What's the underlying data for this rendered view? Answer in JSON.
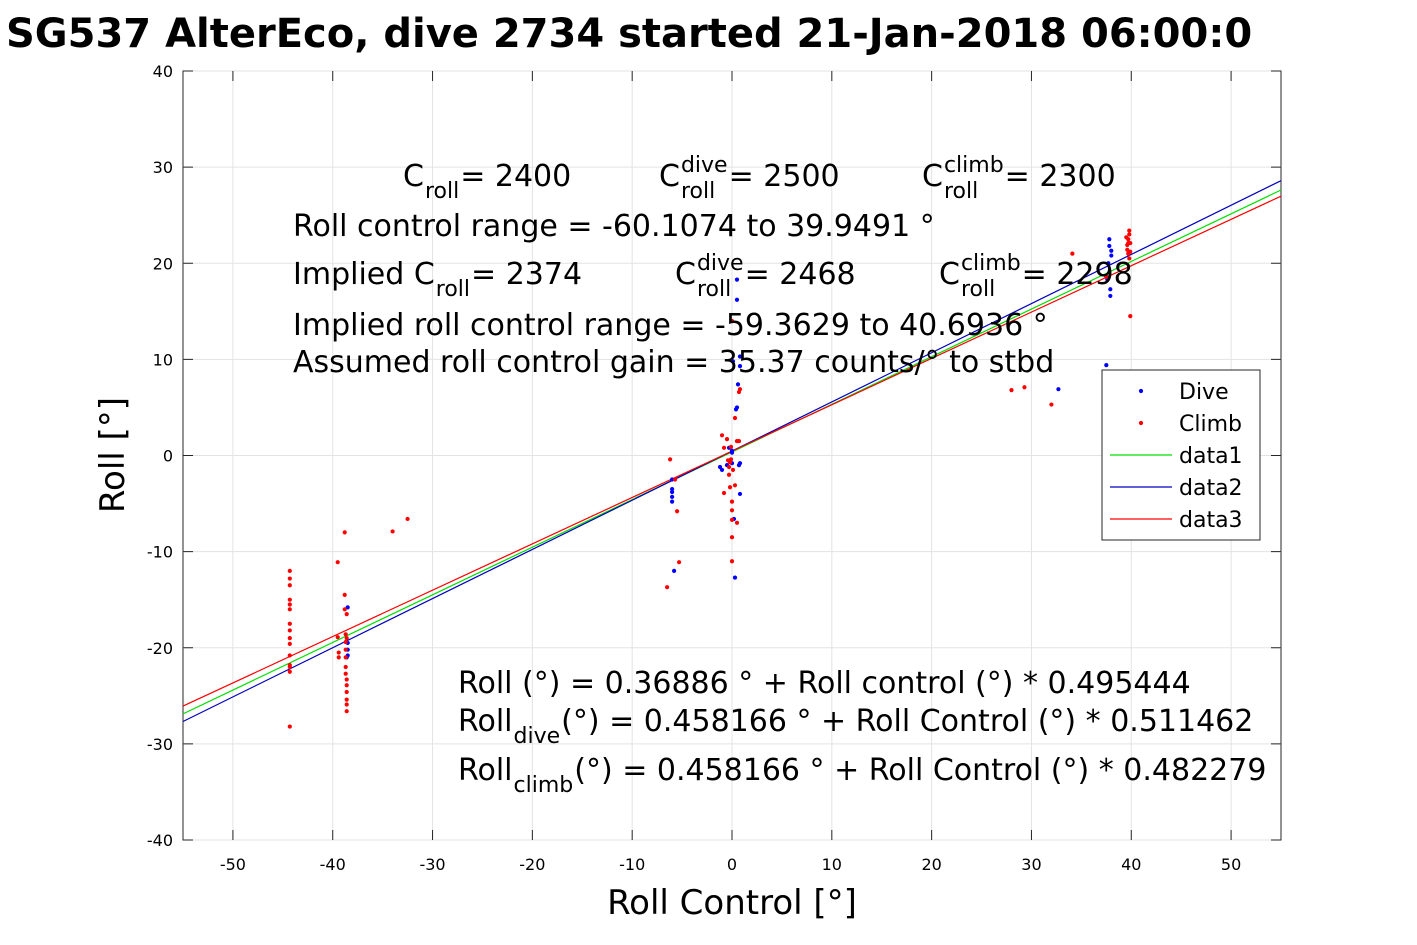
{
  "chart_data": {
    "type": "scatter",
    "title": "SG537 AlterEco, dive 2734 started 21-Jan-2018 06:00:0",
    "xlabel": "Roll Control [°]",
    "ylabel": "Roll [°]",
    "xlim": [
      -55,
      55
    ],
    "ylim": [
      -40,
      40
    ],
    "x_ticks": [
      -50,
      -40,
      -30,
      -20,
      -10,
      0,
      10,
      20,
      30,
      40,
      50
    ],
    "y_ticks": [
      -40,
      -30,
      -20,
      -10,
      0,
      10,
      20,
      30,
      40
    ],
    "grid": true,
    "legend_position": "right",
    "series": [
      {
        "name": "Dive",
        "kind": "points",
        "color": "#0000ff",
        "x": [
          -38.5,
          -38.5,
          -38.5,
          -38.5,
          -38.6,
          -6,
          -6,
          -6,
          -6,
          -6,
          -5.8,
          -1.2,
          -1,
          -0.5,
          -0.3,
          -0.2,
          0,
          0,
          0,
          0.1,
          0.2,
          0.3,
          0.4,
          0.5,
          0.5,
          0.5,
          0.6,
          0.7,
          0.8,
          0.8,
          0.8,
          0.8,
          32.7,
          37.5,
          37.6,
          37.7,
          37.8,
          37.8,
          37.9,
          37.9,
          38,
          38
        ],
        "y": [
          -15.8,
          -19.5,
          -20.2,
          -20.8,
          -21,
          -3.5,
          -3.8,
          -4.3,
          -4.8,
          -2.5,
          -12,
          -1.2,
          -1.5,
          -1,
          0.8,
          -0.5,
          -0.8,
          0.3,
          0.5,
          9.8,
          -6.6,
          -12.7,
          4.8,
          5,
          16.2,
          18.3,
          7.4,
          -1,
          -4,
          -0.8,
          9.3,
          10.3,
          6.9,
          9.4,
          18.3,
          20,
          21.8,
          22.5,
          17.3,
          16.6,
          20.8,
          21.3
        ]
      },
      {
        "name": "Climb",
        "kind": "points",
        "color": "#ff0000",
        "x": [
          -44.3,
          -44.3,
          -44.3,
          -44.3,
          -44.3,
          -44.3,
          -44.3,
          -44.3,
          -44.3,
          -44.3,
          -44.3,
          -44.3,
          -44.3,
          -44.3,
          -44.3,
          -39.5,
          -39.5,
          -39.4,
          -39.4,
          -38.8,
          -38.8,
          -38.8,
          -38.7,
          -38.7,
          -38.7,
          -38.7,
          -38.7,
          -38.7,
          -38.6,
          -38.6,
          -38.6,
          -38.6,
          -38.6,
          -38.6,
          -38.6,
          -38.6,
          -34,
          -32.5,
          -6.5,
          -6.2,
          -5.7,
          -5.5,
          -5.3,
          -1,
          -0.8,
          -0.8,
          -0.5,
          -0.4,
          -0.3,
          -0.3,
          -0.2,
          -0.2,
          -0.1,
          -0.1,
          0,
          0,
          0,
          0,
          0,
          0,
          0.1,
          0.3,
          0.3,
          0.5,
          0.5,
          0.7,
          0.7,
          0.8,
          28,
          29.3,
          32,
          34.1,
          37.5,
          39.5,
          39.6,
          39.6,
          39.7,
          39.7,
          39.7,
          39.8,
          39.8,
          39.8,
          39.9,
          39.9,
          39.9
        ],
        "y": [
          -12,
          -12.8,
          -13.5,
          -15.5,
          -16,
          -17.5,
          -19,
          -19.6,
          -20.8,
          -22,
          -22.5,
          -28.2,
          -15,
          -18.2,
          -21.8,
          -11.1,
          -18.9,
          -20.5,
          -21,
          -8,
          -14.5,
          -16,
          -18.6,
          -19.4,
          -20.2,
          -21,
          -22,
          -22.7,
          -23.3,
          -23.9,
          -24.6,
          -25.4,
          -26.6,
          -16.5,
          -19,
          -25.9,
          -7.9,
          -6.6,
          -13.7,
          -0.4,
          -2.5,
          -5.8,
          -11.1,
          2.1,
          -3.9,
          0.8,
          1.7,
          -0.5,
          -1.2,
          -2,
          -3.3,
          -0.7,
          -0.4,
          0.9,
          -4.8,
          -5.7,
          -6.7,
          -8.5,
          -11,
          14,
          -1.5,
          3.9,
          -3.1,
          -7,
          1.5,
          1.5,
          6.6,
          6.9,
          6.8,
          7.1,
          5.3,
          21,
          18.6,
          22.7,
          21.4,
          21.9,
          22.1,
          22.5,
          21,
          23,
          23.4,
          20.5,
          21.2,
          22.1,
          14.5
        ]
      },
      {
        "name": "data1",
        "kind": "line",
        "color": "#00e000",
        "x": [
          -55,
          55
        ],
        "y": [
          -26.88,
          27.62
        ]
      },
      {
        "name": "data2",
        "kind": "line",
        "color": "#0000c0",
        "x": [
          -55,
          55
        ],
        "y": [
          -27.67,
          28.59
        ]
      },
      {
        "name": "data3",
        "kind": "line",
        "color": "#ff0000",
        "x": [
          -55,
          55
        ],
        "y": [
          -26.07,
          26.98
        ]
      }
    ],
    "annotations_top": {
      "line1": [
        {
          "main": "C",
          "sub": "roll",
          "sup": "",
          "rest": " = 2400"
        },
        {
          "main": "C",
          "sub": "roll",
          "sup": "dive",
          "rest": " = 2500"
        },
        {
          "main": "C",
          "sub": "roll",
          "sup": "climb",
          "rest": " = 2300"
        }
      ],
      "line2": "Roll control range = -60.1074 to 39.9491 °",
      "line3": [
        {
          "main": "Implied C",
          "sub": "roll",
          "sup": "",
          "rest": " = 2374"
        },
        {
          "main": "C",
          "sub": "roll",
          "sup": "dive",
          "rest": " = 2468"
        },
        {
          "main": "C",
          "sub": "roll",
          "sup": "climb",
          "rest": " = 2298"
        }
      ],
      "line4": "Implied roll control range = -59.3629 to 40.6936 °",
      "line5": "Assumed roll control gain = 35.37 counts/° to stbd"
    },
    "annotations_bottom": {
      "line1": "Roll (°) = 0.36886 ° + Roll control (°) * 0.495444",
      "line2": {
        "main": "Roll",
        "sub": "dive",
        "rest": " (°) = 0.458166 ° + Roll Control (°) * 0.511462"
      },
      "line3": {
        "main": "Roll",
        "sub": "climb",
        "rest": " (°) = 0.458166 ° + Roll Control (°) * 0.482279"
      }
    }
  }
}
